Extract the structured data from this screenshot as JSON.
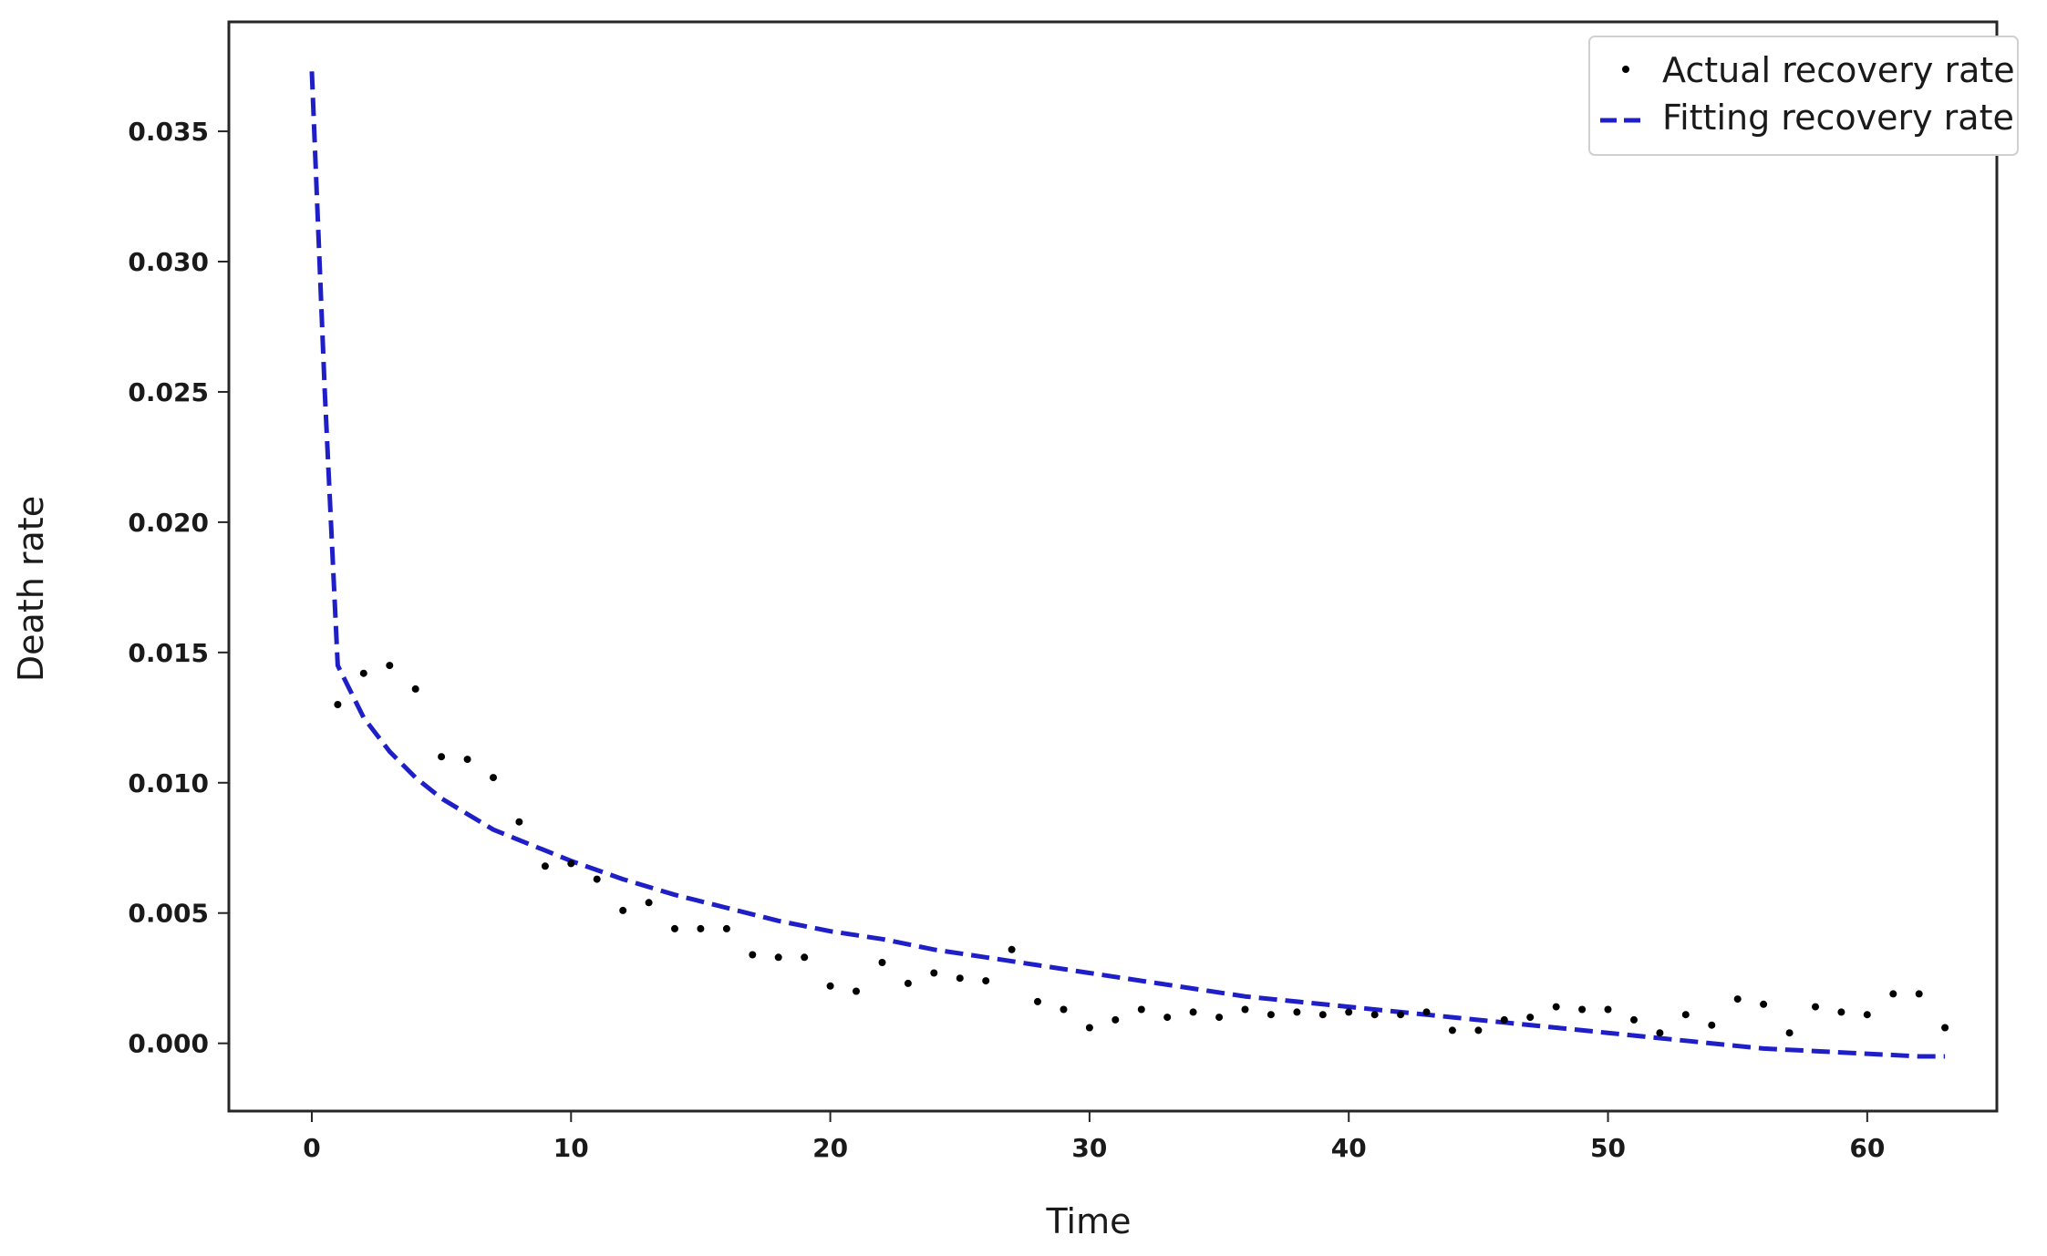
{
  "chart_data": {
    "type": "scatter",
    "title": "",
    "xlabel": "Time",
    "ylabel": "Death rate",
    "xlim": [
      -3.2,
      65
    ],
    "ylim": [
      -0.0026,
      0.0392
    ],
    "xticks": [
      0,
      10,
      20,
      30,
      40,
      50,
      60
    ],
    "yticks": [
      0.0,
      0.005,
      0.01,
      0.015,
      0.02,
      0.025,
      0.03,
      0.035
    ],
    "ytick_labels": [
      "0.000",
      "0.005",
      "0.010",
      "0.015",
      "0.020",
      "0.025",
      "0.030",
      "0.035"
    ],
    "grid": false,
    "legend_position": "top-right",
    "series": [
      {
        "name": "Actual recovery rate",
        "style": "dots",
        "color": "#000000",
        "x": [
          1,
          2,
          3,
          4,
          5,
          6,
          7,
          8,
          9,
          10,
          11,
          12,
          13,
          14,
          15,
          16,
          17,
          18,
          19,
          20,
          21,
          22,
          23,
          24,
          25,
          26,
          27,
          28,
          29,
          30,
          31,
          32,
          33,
          34,
          35,
          36,
          37,
          38,
          39,
          40,
          41,
          42,
          43,
          44,
          45,
          46,
          47,
          48,
          49,
          50,
          51,
          52,
          53,
          54,
          55,
          56,
          57,
          58,
          59,
          60,
          61,
          62,
          63
        ],
        "y": [
          0.013,
          0.0142,
          0.0145,
          0.0136,
          0.011,
          0.0109,
          0.0102,
          0.0085,
          0.0068,
          0.0069,
          0.0063,
          0.0051,
          0.0054,
          0.0044,
          0.0044,
          0.0044,
          0.0034,
          0.0033,
          0.0033,
          0.0022,
          0.002,
          0.0031,
          0.0023,
          0.0027,
          0.0025,
          0.0024,
          0.0036,
          0.0016,
          0.0013,
          0.0006,
          0.0009,
          0.0013,
          0.001,
          0.0012,
          0.001,
          0.0013,
          0.0011,
          0.0012,
          0.0011,
          0.0012,
          0.0011,
          0.0011,
          0.0012,
          0.0005,
          0.0005,
          0.0009,
          0.001,
          0.0014,
          0.0013,
          0.0013,
          0.0009,
          0.0004,
          0.0011,
          0.0007,
          0.0017,
          0.0015,
          0.0004,
          0.0014,
          0.0012,
          0.0011,
          0.0019,
          0.0019,
          0.0006
        ]
      },
      {
        "name": "Fitting recovery rate",
        "style": "dashed-line",
        "color": "#1f1fc8",
        "x": [
          0,
          0.5,
          1,
          2,
          3,
          4,
          5,
          6,
          7,
          8,
          9,
          10,
          12,
          14,
          16,
          18,
          20,
          22,
          24,
          26,
          28,
          30,
          32,
          34,
          36,
          38,
          40,
          42,
          44,
          46,
          48,
          50,
          52,
          54,
          56,
          58,
          60,
          62,
          63
        ],
        "y": [
          0.0373,
          0.025,
          0.0145,
          0.0125,
          0.0112,
          0.0102,
          0.0094,
          0.0088,
          0.0082,
          0.0078,
          0.0074,
          0.007,
          0.0063,
          0.0057,
          0.0052,
          0.0047,
          0.0043,
          0.004,
          0.0036,
          0.0033,
          0.003,
          0.0027,
          0.0024,
          0.0021,
          0.0018,
          0.0016,
          0.0014,
          0.0012,
          0.001,
          0.0008,
          0.0006,
          0.0004,
          0.0002,
          0.0,
          -0.0002,
          -0.0003,
          -0.0004,
          -0.0005,
          -0.0005
        ]
      }
    ]
  }
}
